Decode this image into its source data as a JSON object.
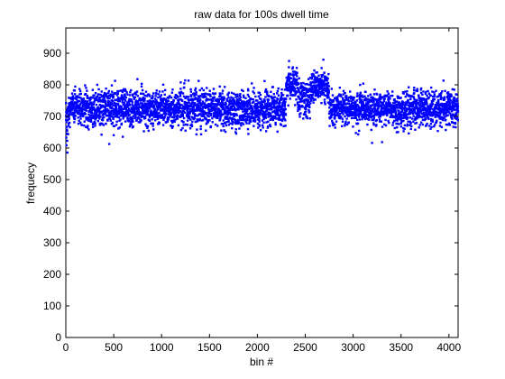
{
  "chart_data": {
    "type": "scatter",
    "title": "raw data for 100s dwell time",
    "xlabel": "bin #",
    "ylabel": "frequecy",
    "xlim": [
      0,
      4096
    ],
    "ylim": [
      0,
      980
    ],
    "x_ticks": [
      0,
      500,
      1000,
      1500,
      2000,
      2500,
      3000,
      3500,
      4000
    ],
    "y_ticks": [
      0,
      100,
      200,
      300,
      400,
      500,
      600,
      700,
      800,
      900
    ],
    "grid": false,
    "legend": "none",
    "marker": "point",
    "color": "#0000ff",
    "series": [
      {
        "points_count": 4096,
        "x_start": 1,
        "x_end": 4096,
        "segments": [
          {
            "x_from": 0,
            "x_to": 30,
            "y_center": 680,
            "y_spread": 140
          },
          {
            "x_from": 30,
            "x_to": 2300,
            "y_center": 725,
            "y_spread": 90
          },
          {
            "x_from": 2300,
            "x_to": 2420,
            "y_center": 800,
            "y_spread": 85
          },
          {
            "x_from": 2420,
            "x_to": 2550,
            "y_center": 760,
            "y_spread": 90
          },
          {
            "x_from": 2550,
            "x_to": 2750,
            "y_center": 790,
            "y_spread": 80
          },
          {
            "x_from": 2750,
            "x_to": 4096,
            "y_center": 725,
            "y_spread": 85
          }
        ]
      }
    ]
  }
}
